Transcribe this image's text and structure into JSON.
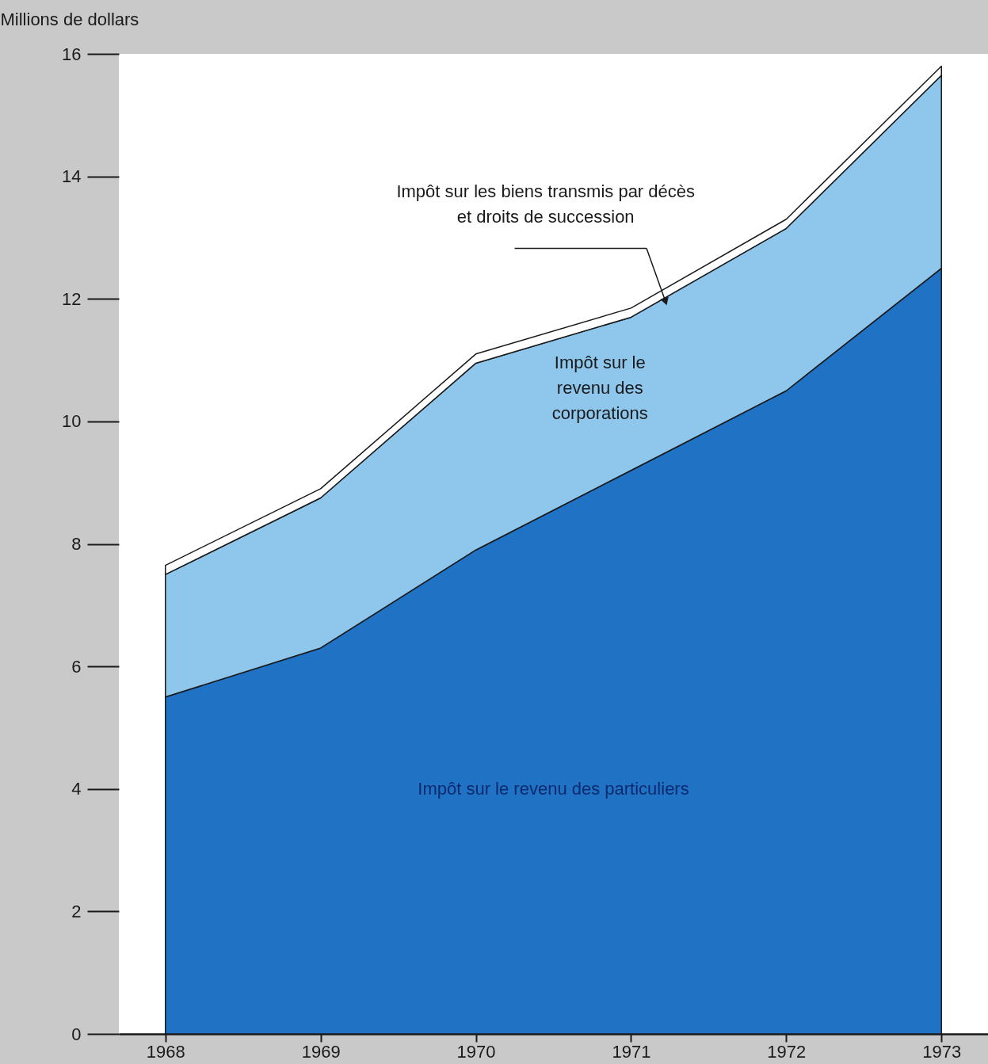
{
  "chart_data": {
    "type": "area",
    "stacked": true,
    "ylabel": "Millions de dollars",
    "x": [
      1968,
      1969,
      1970,
      1971,
      1972,
      1973
    ],
    "xlim": [
      1967.7,
      1973.3
    ],
    "xticks": [
      1968,
      1969,
      1970,
      1971,
      1972,
      1973
    ],
    "ylim": [
      0,
      16
    ],
    "yticks": [
      0,
      2,
      4,
      6,
      8,
      10,
      12,
      14,
      16
    ],
    "grid": false,
    "legend": false,
    "series": [
      {
        "name": "Impôt sur le revenu des particuliers",
        "color": "#1f72c4",
        "values": [
          5.5,
          6.3,
          7.9,
          9.2,
          10.5,
          12.5
        ]
      },
      {
        "name": "Impôt sur le revenu des corporations",
        "color": "#8ec6ec",
        "values": [
          2.0,
          2.45,
          3.05,
          2.5,
          2.65,
          3.15
        ]
      },
      {
        "name": "Impôt sur les biens transmis par décès et droits de succession",
        "color": "#ffffff",
        "values": [
          0.15,
          0.15,
          0.15,
          0.15,
          0.15,
          0.15
        ]
      }
    ]
  }
}
